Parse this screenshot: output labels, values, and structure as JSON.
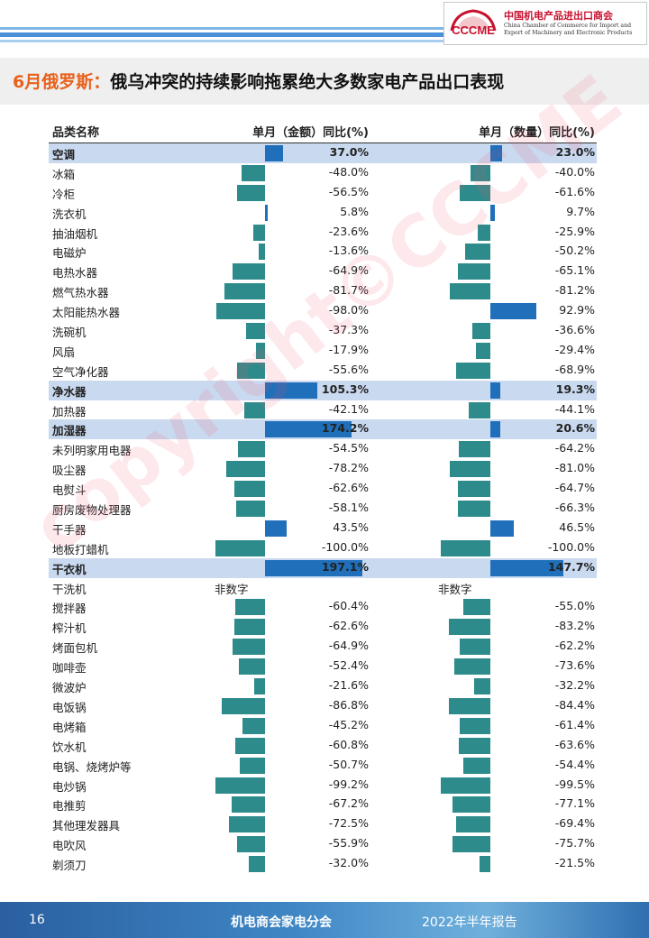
{
  "header": {
    "logo_text": "CCCME",
    "org_cn": "中国机电产品进出口商会",
    "org_en": "China Chamber of Commerce for Import and Export of Machinery and Electronic Products",
    "stripe_color": "#4a90d9"
  },
  "title": {
    "prefix": "6月俄罗斯：",
    "text": "俄乌冲突的持续影响拖累绝大多数家电产品出口表现"
  },
  "table": {
    "columns": [
      "品类名称",
      "单月（金额）同比(%)",
      "单月（数量）同比(%)"
    ],
    "rows": [
      {
        "name": "空调",
        "amount": "37.0%",
        "quantity": "23.0%",
        "amount_value": 37.0,
        "quantity_value": 23.0,
        "highlight": true
      },
      {
        "name": "冰箱",
        "amount": "-48.0%",
        "quantity": "-40.0%",
        "amount_value": -48.0,
        "quantity_value": -40.0
      },
      {
        "name": "冷柜",
        "amount": "-56.5%",
        "quantity": "-61.6%",
        "amount_value": -56.5,
        "quantity_value": -61.6
      },
      {
        "name": "洗衣机",
        "amount": "5.8%",
        "quantity": "9.7%",
        "amount_value": 5.8,
        "quantity_value": 9.7
      },
      {
        "name": "抽油烟机",
        "amount": "-23.6%",
        "quantity": "-25.9%",
        "amount_value": -23.6,
        "quantity_value": -25.9
      },
      {
        "name": "电磁炉",
        "amount": "-13.6%",
        "quantity": "-50.2%",
        "amount_value": -13.6,
        "quantity_value": -50.2
      },
      {
        "name": "电热水器",
        "amount": "-64.9%",
        "quantity": "-65.1%",
        "amount_value": -64.9,
        "quantity_value": -65.1
      },
      {
        "name": "燃气热水器",
        "amount": "-81.7%",
        "quantity": "-81.2%",
        "amount_value": -81.7,
        "quantity_value": -81.2
      },
      {
        "name": "太阳能热水器",
        "amount": "-98.0%",
        "quantity": "92.9%",
        "amount_value": -98.0,
        "quantity_value": 92.9
      },
      {
        "name": "洗碗机",
        "amount": "-37.3%",
        "quantity": "-36.6%",
        "amount_value": -37.3,
        "quantity_value": -36.6
      },
      {
        "name": "风扇",
        "amount": "-17.9%",
        "quantity": "-29.4%",
        "amount_value": -17.9,
        "quantity_value": -29.4
      },
      {
        "name": "空气净化器",
        "amount": "-55.6%",
        "quantity": "-68.9%",
        "amount_value": -55.6,
        "quantity_value": -68.9
      },
      {
        "name": "净水器",
        "amount": "105.3%",
        "quantity": "19.3%",
        "amount_value": 105.3,
        "quantity_value": 19.3,
        "highlight": true
      },
      {
        "name": "加热器",
        "amount": "-42.1%",
        "quantity": "-44.1%",
        "amount_value": -42.1,
        "quantity_value": -44.1
      },
      {
        "name": "加湿器",
        "amount": "174.2%",
        "quantity": "20.6%",
        "amount_value": 174.2,
        "quantity_value": 20.6,
        "highlight": true
      },
      {
        "name": "未列明家用电器",
        "amount": "-54.5%",
        "quantity": "-64.2%",
        "amount_value": -54.5,
        "quantity_value": -64.2
      },
      {
        "name": "吸尘器",
        "amount": "-78.2%",
        "quantity": "-81.0%",
        "amount_value": -78.2,
        "quantity_value": -81.0
      },
      {
        "name": "电熨斗",
        "amount": "-62.6%",
        "quantity": "-64.7%",
        "amount_value": -62.6,
        "quantity_value": -64.7
      },
      {
        "name": "厨房废物处理器",
        "amount": "-58.1%",
        "quantity": "-66.3%",
        "amount_value": -58.1,
        "quantity_value": -66.3
      },
      {
        "name": "干手器",
        "amount": "43.5%",
        "quantity": "46.5%",
        "amount_value": 43.5,
        "quantity_value": 46.5
      },
      {
        "name": "地板打蜡机",
        "amount": "-100.0%",
        "quantity": "-100.0%",
        "amount_value": -100.0,
        "quantity_value": -100.0
      },
      {
        "name": "干衣机",
        "amount": "197.1%",
        "quantity": "147.7%",
        "amount_value": 197.1,
        "quantity_value": 147.7,
        "highlight": true
      },
      {
        "name": "干洗机",
        "amount": "非数字",
        "quantity": "非数字",
        "non_numeric": true
      },
      {
        "name": "搅拌器",
        "amount": "-60.4%",
        "quantity": "-55.0%",
        "amount_value": -60.4,
        "quantity_value": -55.0
      },
      {
        "name": "榨汁机",
        "amount": "-62.6%",
        "quantity": "-83.2%",
        "amount_value": -62.6,
        "quantity_value": -83.2
      },
      {
        "name": "烤面包机",
        "amount": "-64.9%",
        "quantity": "-62.2%",
        "amount_value": -64.9,
        "quantity_value": -62.2
      },
      {
        "name": "咖啡壶",
        "amount": "-52.4%",
        "quantity": "-73.6%",
        "amount_value": -52.4,
        "quantity_value": -73.6
      },
      {
        "name": "微波炉",
        "amount": "-21.6%",
        "quantity": "-32.2%",
        "amount_value": -21.6,
        "quantity_value": -32.2
      },
      {
        "name": "电饭锅",
        "amount": "-86.8%",
        "quantity": "-84.4%",
        "amount_value": -86.8,
        "quantity_value": -84.4
      },
      {
        "name": "电烤箱",
        "amount": "-45.2%",
        "quantity": "-61.4%",
        "amount_value": -45.2,
        "quantity_value": -61.4
      },
      {
        "name": "饮水机",
        "amount": "-60.8%",
        "quantity": "-63.6%",
        "amount_value": -60.8,
        "quantity_value": -63.6
      },
      {
        "name": "电锅、烧烤炉等",
        "amount": "-50.7%",
        "quantity": "-54.4%",
        "amount_value": -50.7,
        "quantity_value": -54.4
      },
      {
        "name": "电炒锅",
        "amount": "-99.2%",
        "quantity": "-99.5%",
        "amount_value": -99.2,
        "quantity_value": -99.5
      },
      {
        "name": "电推剪",
        "amount": "-67.2%",
        "quantity": "-77.1%",
        "amount_value": -67.2,
        "quantity_value": -77.1
      },
      {
        "name": "其他理发器具",
        "amount": "-72.5%",
        "quantity": "-69.4%",
        "amount_value": -72.5,
        "quantity_value": -69.4
      },
      {
        "name": "电吹风",
        "amount": "-55.9%",
        "quantity": "-75.7%",
        "amount_value": -55.9,
        "quantity_value": -75.7
      },
      {
        "name": "剃须刀",
        "amount": "-32.0%",
        "quantity": "-21.5%",
        "amount_value": -32.0,
        "quantity_value": -21.5
      }
    ]
  },
  "colors": {
    "negative_bar": "#2e8b8b",
    "positive_bar": "#1f6fba",
    "highlight_row": "#c9d9ef",
    "title_accent": "#e8611a"
  },
  "watermark": "copyright©CCCME",
  "footer": {
    "page_number": "16",
    "org": "机电商会家电分会",
    "report": "2022年半年报告"
  }
}
